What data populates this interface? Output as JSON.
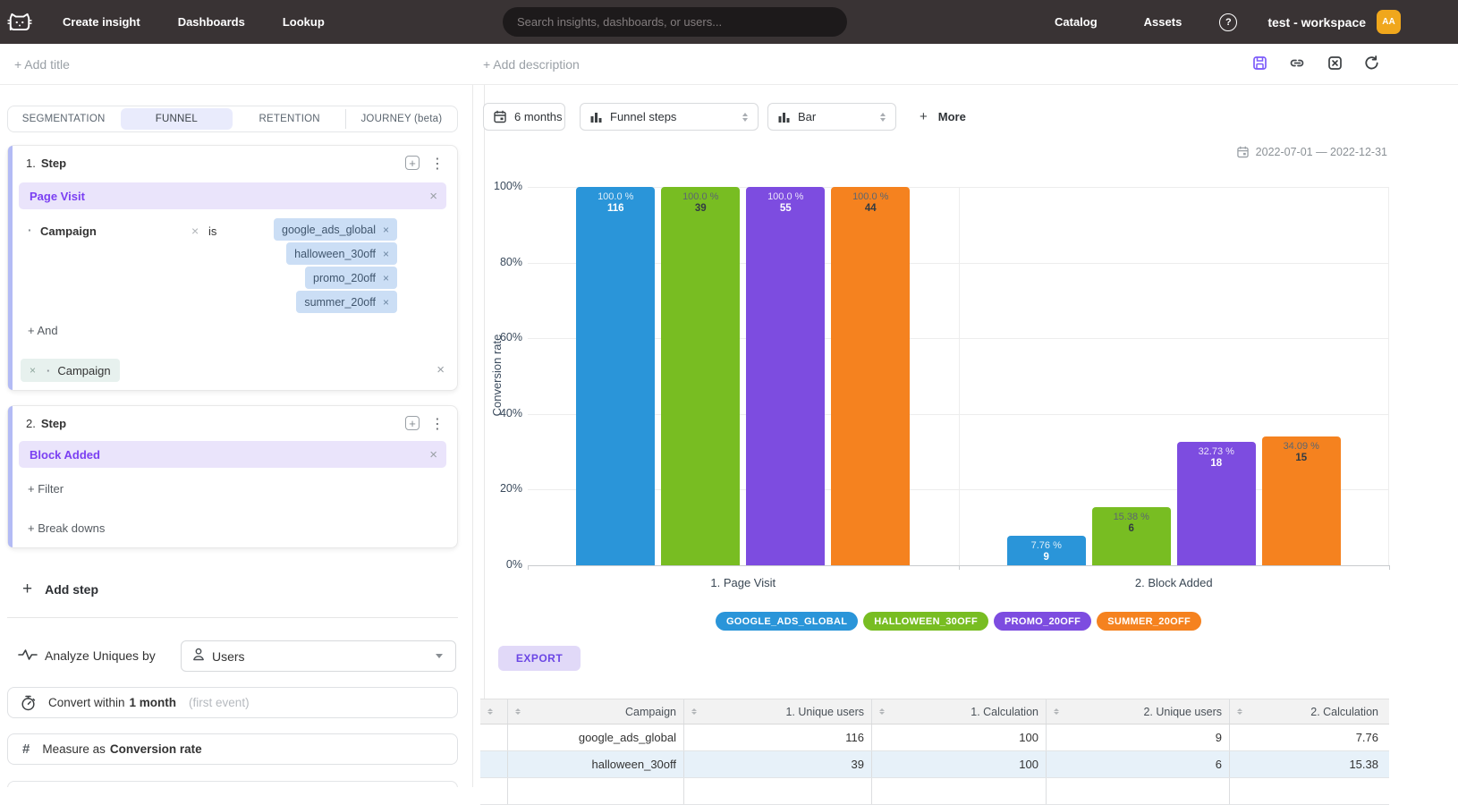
{
  "icons": {
    "plus": "+",
    "close": "×",
    "dots": "⋮",
    "bullet": "·",
    "question": "?"
  },
  "topbar": {
    "nav": [
      "Create insight",
      "Dashboards",
      "Lookup"
    ],
    "search_placeholder": "Search insights, dashboards, or users...",
    "right_nav": [
      "Catalog",
      "Assets"
    ],
    "workspace": "test - workspace",
    "avatar_initials": "AA"
  },
  "title_row": {
    "add_title": "+ Add title",
    "add_description": "+ Add description"
  },
  "left_panel": {
    "tabs": [
      {
        "label": "SEGMENTATION",
        "active": false
      },
      {
        "label": "FUNNEL",
        "active": true
      },
      {
        "label": "RETENTION",
        "active": false
      },
      {
        "label": "JOURNEY (beta)",
        "active": false
      }
    ],
    "steps": [
      {
        "index": "1.",
        "title": "Step",
        "event": "Page Visit",
        "filter": {
          "name": "Campaign",
          "operator": "is",
          "values": [
            "google_ads_global",
            "halloween_30off",
            "promo_20off",
            "summer_20off"
          ]
        },
        "and_label": "+ And",
        "breakdown": "Campaign"
      },
      {
        "index": "2.",
        "title": "Step",
        "event": "Block Added",
        "filter_label": "+ Filter",
        "breakdowns_label": "+ Break downs"
      }
    ],
    "add_step": "Add step",
    "analyze": {
      "label": "Analyze Uniques by",
      "value": "Users"
    },
    "convert": {
      "prefix": "Convert within",
      "value": "1 month",
      "suffix": "(first event)"
    },
    "measure": {
      "prefix": "Measure as",
      "value": "Conversion rate"
    }
  },
  "toolbar": {
    "date_button": "6 months",
    "display_select": "Funnel steps",
    "chart_select": "Bar",
    "more_label": "More"
  },
  "date_range": "2022-07-01 — 2022-12-31",
  "chart_data": {
    "type": "bar",
    "categories": [
      "1. Page Visit",
      "2. Block Added"
    ],
    "series": [
      {
        "name": "google_ads_global",
        "color": "#2a95d9",
        "values": [
          100.0,
          7.76
        ],
        "counts": [
          116,
          9
        ],
        "pct_labels": [
          "100.0 %",
          "7.76 %"
        ],
        "light_label": true
      },
      {
        "name": "halloween_30off",
        "color": "#78bd22",
        "values": [
          100.0,
          15.38
        ],
        "counts": [
          39,
          6
        ],
        "pct_labels": [
          "100.0 %",
          "15.38 %"
        ],
        "light_label": false
      },
      {
        "name": "promo_20off",
        "color": "#7d4ce0",
        "values": [
          100.0,
          32.73
        ],
        "counts": [
          55,
          18
        ],
        "pct_labels": [
          "100.0 %",
          "32.73 %"
        ],
        "light_label": true
      },
      {
        "name": "summer_20off",
        "color": "#f5821f",
        "values": [
          100.0,
          34.09
        ],
        "counts": [
          44,
          15
        ],
        "pct_labels": [
          "100.0 %",
          "34.09 %"
        ],
        "light_label": false
      }
    ],
    "title": "",
    "xlabel": "",
    "ylabel": "Conversion rate",
    "yticks": [
      "100%",
      "80%",
      "60%",
      "40%",
      "20%",
      "0%"
    ],
    "ylim": [
      0,
      100
    ],
    "grid": true,
    "legend_position": "bottom"
  },
  "legend": [
    {
      "label": "GOOGLE_ADS_GLOBAL",
      "color": "#2a95d9"
    },
    {
      "label": "HALLOWEEN_30OFF",
      "color": "#78bd22"
    },
    {
      "label": "PROMO_20OFF",
      "color": "#7d4ce0"
    },
    {
      "label": "SUMMER_20OFF",
      "color": "#f5821f"
    }
  ],
  "export_label": "EXPORT",
  "table": {
    "headers": [
      "Campaign",
      "1. Unique users",
      "1. Calculation",
      "2. Unique users",
      "2. Calculation"
    ],
    "rows": [
      [
        "google_ads_global",
        "116",
        "100",
        "9",
        "7.76"
      ],
      [
        "halloween_30off",
        "39",
        "100",
        "6",
        "15.38"
      ]
    ]
  }
}
